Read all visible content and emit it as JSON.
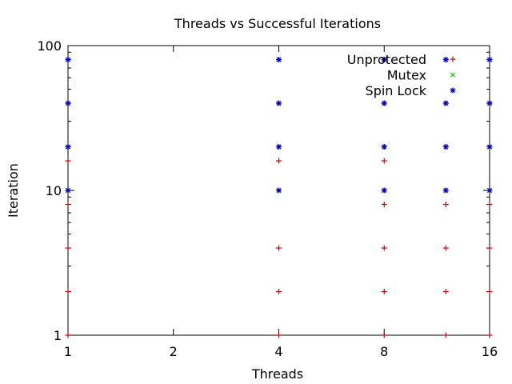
{
  "chart_data": {
    "type": "scatter",
    "title": "Threads vs Successful Iterations",
    "xlabel": "Threads",
    "ylabel": "Iteration",
    "xscale": "log2",
    "yscale": "log10",
    "xlim": [
      1,
      16
    ],
    "ylim": [
      1,
      100
    ],
    "xticks": [
      {
        "value": 1,
        "label": "1"
      },
      {
        "value": 2,
        "label": "2"
      },
      {
        "value": 4,
        "label": "4"
      },
      {
        "value": 8,
        "label": "8"
      },
      {
        "value": 16,
        "label": "16"
      }
    ],
    "yticks": [
      {
        "value": 1,
        "label": "1"
      },
      {
        "value": 10,
        "label": "10"
      },
      {
        "value": 100,
        "label": "100"
      }
    ],
    "legend_position": "top-right",
    "series": [
      {
        "name": "Unprotected",
        "marker": "plus",
        "color": "#cc0000",
        "points": [
          [
            1,
            1
          ],
          [
            1,
            2
          ],
          [
            1,
            4
          ],
          [
            1,
            8
          ],
          [
            1,
            10
          ],
          [
            1,
            16
          ],
          [
            1,
            20
          ],
          [
            1,
            40
          ],
          [
            1,
            80
          ],
          [
            4,
            1
          ],
          [
            4,
            2
          ],
          [
            4,
            4
          ],
          [
            4,
            10
          ],
          [
            4,
            16
          ],
          [
            4,
            20
          ],
          [
            4,
            40
          ],
          [
            4,
            80
          ],
          [
            8,
            1
          ],
          [
            8,
            2
          ],
          [
            8,
            4
          ],
          [
            8,
            8
          ],
          [
            8,
            10
          ],
          [
            8,
            16
          ],
          [
            8,
            20
          ],
          [
            8,
            40
          ],
          [
            8,
            80
          ],
          [
            12,
            1
          ],
          [
            12,
            2
          ],
          [
            12,
            4
          ],
          [
            12,
            8
          ],
          [
            12,
            10
          ],
          [
            12,
            20
          ],
          [
            12,
            40
          ],
          [
            12,
            80
          ],
          [
            16,
            1
          ],
          [
            16,
            2
          ],
          [
            16,
            4
          ],
          [
            16,
            8
          ],
          [
            16,
            10
          ],
          [
            16,
            20
          ],
          [
            16,
            40
          ],
          [
            16,
            80
          ]
        ]
      },
      {
        "name": "Mutex",
        "marker": "cross",
        "color": "#00cc00",
        "points": [
          [
            1,
            10
          ],
          [
            1,
            20
          ],
          [
            1,
            40
          ],
          [
            1,
            80
          ],
          [
            4,
            10
          ],
          [
            4,
            20
          ],
          [
            4,
            40
          ],
          [
            4,
            80
          ],
          [
            8,
            10
          ],
          [
            8,
            20
          ],
          [
            8,
            40
          ],
          [
            8,
            80
          ],
          [
            12,
            10
          ],
          [
            12,
            20
          ],
          [
            12,
            40
          ],
          [
            12,
            80
          ],
          [
            16,
            10
          ],
          [
            16,
            20
          ],
          [
            16,
            40
          ],
          [
            16,
            80
          ]
        ]
      },
      {
        "name": "Spin Lock",
        "marker": "star",
        "color": "#0000cc",
        "points": [
          [
            1,
            10
          ],
          [
            1,
            20
          ],
          [
            1,
            40
          ],
          [
            1,
            80
          ],
          [
            4,
            10
          ],
          [
            4,
            20
          ],
          [
            4,
            40
          ],
          [
            4,
            80
          ],
          [
            8,
            10
          ],
          [
            8,
            20
          ],
          [
            8,
            40
          ],
          [
            8,
            80
          ],
          [
            12,
            10
          ],
          [
            12,
            20
          ],
          [
            12,
            40
          ],
          [
            12,
            80
          ],
          [
            16,
            10
          ],
          [
            16,
            20
          ],
          [
            16,
            40
          ],
          [
            16,
            80
          ]
        ]
      }
    ]
  }
}
